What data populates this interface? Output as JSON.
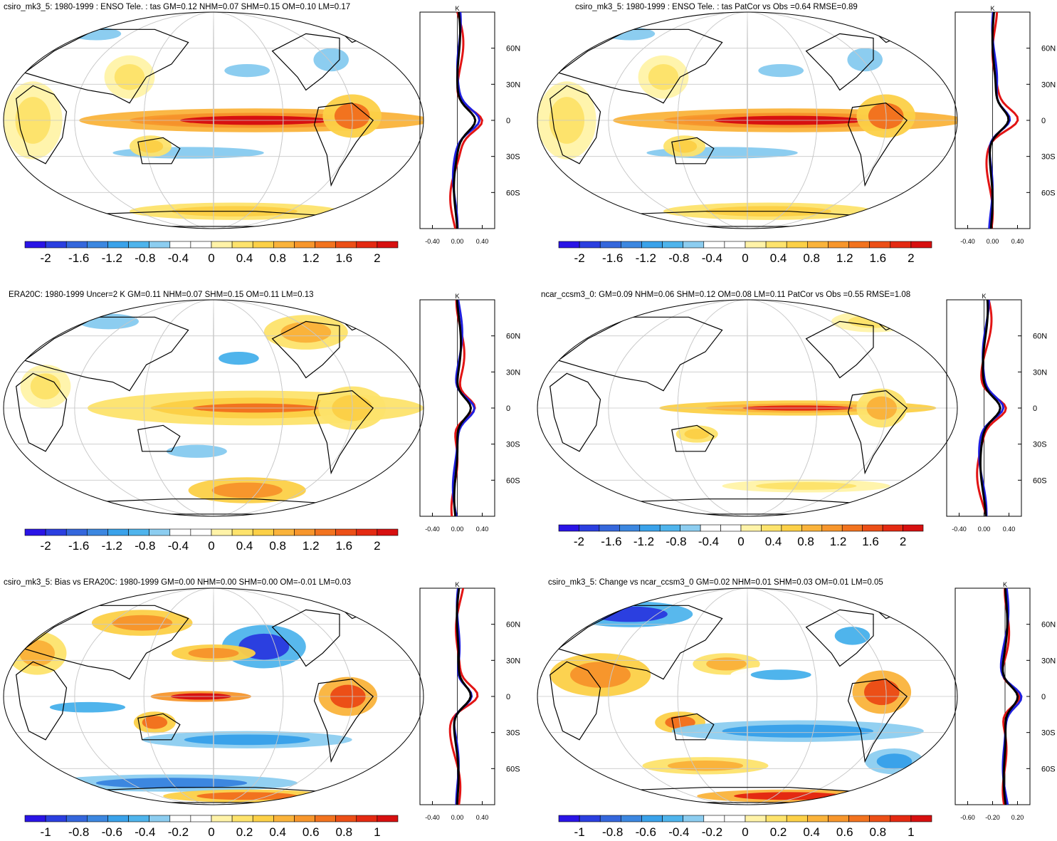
{
  "colors": {
    "scale": [
      "#2a14e6",
      "#2b3fe0",
      "#3567dc",
      "#3c87e0",
      "#3aa2ea",
      "#4fb4ec",
      "#8ccdf0",
      "#ffffff",
      "#ffffff",
      "#fff3a8",
      "#fde36c",
      "#fcd047",
      "#fab33b",
      "#f7962c",
      "#f2731f",
      "#ec4f17",
      "#e42a12",
      "#d71010"
    ],
    "land": "#000000",
    "grid": "#c8c8c8",
    "model_line": "#1f1fe0",
    "obs_line": "#e21414",
    "diff_line": "#000000"
  },
  "panels": [
    {
      "title": "csiro_mk3_5: 1980-1999 : ENSO Tele. : tas GM=0.12 NHM=0.07 SHM=0.15 OM=0.10 LM=0.17",
      "colorbar_labels": [
        "-2",
        "-1.6",
        "-1.2",
        "-0.8",
        "-0.4",
        "0",
        "0.4",
        "0.8",
        "1.2",
        "1.6",
        "2"
      ],
      "profile_xticks": [
        "-0.40",
        "0.00",
        "0.40"
      ],
      "profile_unit": "K"
    },
    {
      "title": "csiro_mk3_5: 1980-1999 : ENSO Tele. : tas PatCor vs Obs =0.64 RMSE=0.89",
      "colorbar_labels": [
        "-2",
        "-1.6",
        "-1.2",
        "-0.8",
        "-0.4",
        "0",
        "0.4",
        "0.8",
        "1.2",
        "1.6",
        "2"
      ],
      "profile_xticks": [
        "-0.40",
        "0.00",
        "0.40"
      ],
      "profile_unit": "K"
    },
    {
      "title": "ERA20C: 1980-1999 Uncer=2 K GM=0.11 NHM=0.07 SHM=0.15 OM=0.11 LM=0.13",
      "colorbar_labels": [
        "-2",
        "-1.6",
        "-1.2",
        "-0.8",
        "-0.4",
        "0",
        "0.4",
        "0.8",
        "1.2",
        "1.6",
        "2"
      ],
      "profile_xticks": [
        "-0.40",
        "0.00",
        "0.40"
      ],
      "profile_unit": "K"
    },
    {
      "title": "ncar_ccsm3_0: GM=0.09 NHM=0.06 SHM=0.12 OM=0.08 LM=0.11 PatCor vs Obs =0.55 RMSE=1.08",
      "colorbar_labels": [
        "-2",
        "-1.6",
        "-1.2",
        "-0.8",
        "-0.4",
        "0",
        "0.4",
        "0.8",
        "1.2",
        "1.6",
        "2"
      ],
      "profile_xticks": [
        "-0.40",
        "0.00",
        "0.40"
      ],
      "profile_unit": "K"
    },
    {
      "title": "csiro_mk3_5: Bias vs ERA20C: 1980-1999 GM=0.00 NHM=0.00 SHM=0.00 OM=-0.01 LM=0.03",
      "colorbar_labels": [
        "-1",
        "-0.8",
        "-0.6",
        "-0.4",
        "-0.2",
        "0",
        "0.2",
        "0.4",
        "0.6",
        "0.8",
        "1"
      ],
      "profile_xticks": [
        "-0.40",
        "0.00",
        "0.40"
      ],
      "profile_unit": "K"
    },
    {
      "title": "csiro_mk3_5: Change vs ncar_ccsm3_0 GM=0.02 NHM=0.01 SHM=0.03 OM=0.01 LM=0.05",
      "colorbar_labels": [
        "-1",
        "-0.8",
        "-0.6",
        "-0.4",
        "-0.2",
        "0",
        "0.2",
        "0.4",
        "0.6",
        "0.8",
        "1"
      ],
      "profile_xticks": [
        "-0.60",
        "-0.20",
        "0.20"
      ],
      "profile_unit": "K"
    }
  ],
  "chart_data": [
    {
      "type": "heatmap",
      "title": "csiro_mk3_5: 1980-1999 : ENSO Tele. : tas GM=0.12 NHM=0.07 SHM=0.15 OM=0.10 LM=0.17",
      "colorbar_range": [
        -2,
        2
      ],
      "lat_ticks": [
        "60N",
        "30N",
        "0",
        "30S",
        "60S"
      ],
      "profile_range": [
        -0.6,
        0.6
      ],
      "features": [
        {
          "name": "tropical-pacific-warm",
          "value": 1.4
        },
        {
          "name": "amazon-warm",
          "value": 1.2
        },
        {
          "name": "north-pacific-cool",
          "value": -0.6
        },
        {
          "name": "australia-warm",
          "value": 0.6
        },
        {
          "name": "south-pacific-cool",
          "value": -0.4
        }
      ]
    },
    {
      "type": "heatmap",
      "title": "csiro_mk3_5: 1980-1999 : ENSO Tele. : tas PatCor vs Obs =0.64 RMSE=0.89",
      "colorbar_range": [
        -2,
        2
      ],
      "lat_ticks": [
        "60N",
        "30N",
        "0",
        "30S",
        "60S"
      ],
      "profile_range": [
        -0.6,
        0.6
      ],
      "features": [
        {
          "name": "tropical-pacific-warm",
          "value": 1.4
        },
        {
          "name": "amazon-warm",
          "value": 1.2
        },
        {
          "name": "north-pacific-cool",
          "value": -0.6
        },
        {
          "name": "australia-warm",
          "value": 0.6
        },
        {
          "name": "south-pacific-cool",
          "value": -0.4
        }
      ]
    },
    {
      "type": "heatmap",
      "title": "ERA20C: 1980-1999 Uncer=2 K GM=0.11 NHM=0.07 SHM=0.15 OM=0.11 LM=0.13",
      "colorbar_range": [
        -2,
        2
      ],
      "lat_ticks": [
        "60N",
        "30N",
        "0",
        "30S",
        "60S"
      ],
      "profile_range": [
        -0.6,
        0.6
      ],
      "features": [
        {
          "name": "tropical-pacific-warm",
          "value": 1.2
        },
        {
          "name": "southern-ocean-warm",
          "value": 1.1
        },
        {
          "name": "north-pacific-cool",
          "value": -0.7
        },
        {
          "name": "alaska-warm",
          "value": 0.8
        }
      ]
    },
    {
      "type": "heatmap",
      "title": "ncar_ccsm3_0: GM=0.09 NHM=0.06 SHM=0.12 OM=0.08 LM=0.11 PatCor vs Obs =0.55 RMSE=1.08",
      "colorbar_range": [
        -2,
        2
      ],
      "lat_ticks": [
        "60N",
        "30N",
        "0",
        "30S",
        "60S"
      ],
      "profile_range": [
        -0.6,
        0.6
      ],
      "features": [
        {
          "name": "tropical-pacific-warm",
          "value": 1.5
        },
        {
          "name": "amazon-warm",
          "value": 0.8
        },
        {
          "name": "greenland-warm",
          "value": 0.5
        }
      ]
    },
    {
      "type": "heatmap",
      "title": "csiro_mk3_5: Bias vs ERA20C: 1980-1999 GM=0.00 NHM=0.00 SHM=0.00 OM=-0.01 LM=0.03",
      "colorbar_range": [
        -1,
        1
      ],
      "lat_ticks": [
        "60N",
        "30N",
        "0",
        "30S",
        "60S"
      ],
      "profile_range": [
        -0.6,
        0.6
      ],
      "features": [
        {
          "name": "west-pacific-warm",
          "value": 1.0
        },
        {
          "name": "amazon-warm",
          "value": 0.7
        },
        {
          "name": "north-america-cool",
          "value": -0.9
        },
        {
          "name": "southern-ocean-cool",
          "value": -0.7
        },
        {
          "name": "antarctica-warm",
          "value": 0.6
        }
      ]
    },
    {
      "type": "heatmap",
      "title": "csiro_mk3_5: Change vs ncar_ccsm3_0 GM=0.02 NHM=0.01 SHM=0.03 OM=0.01 LM=0.05",
      "colorbar_range": [
        -1,
        1
      ],
      "lat_ticks": [
        "60N",
        "30N",
        "0",
        "30S",
        "60S"
      ],
      "profile_range": [
        -0.8,
        0.4
      ],
      "features": [
        {
          "name": "siberia-cool",
          "value": -0.9
        },
        {
          "name": "amazon-warm",
          "value": 0.7
        },
        {
          "name": "africa-warm",
          "value": 0.5
        },
        {
          "name": "antarctica-warm",
          "value": 0.8
        },
        {
          "name": "south-pacific-cool",
          "value": -0.5
        }
      ]
    }
  ]
}
